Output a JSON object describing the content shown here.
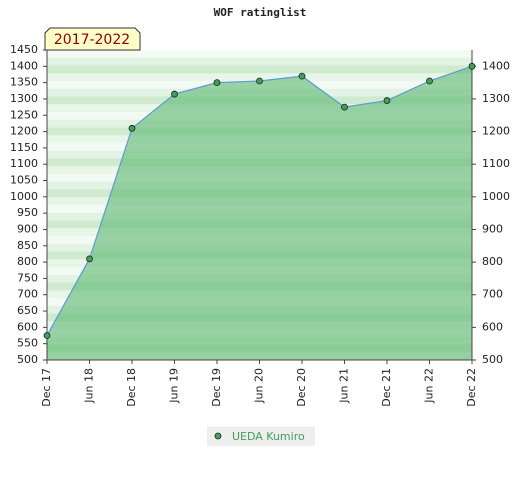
{
  "chart_data": {
    "type": "line",
    "title": "WOF ratinglist",
    "annotation": "2017-2022",
    "categories": [
      "Dec 17",
      "Jun 18",
      "Dec 18",
      "Jun 19",
      "Dec 19",
      "Jun 20",
      "Dec 20",
      "Jun 21",
      "Dec 21",
      "Jun 22",
      "Dec 22"
    ],
    "series": [
      {
        "name": "UEDA Kumiro",
        "color": "#5b9bd5",
        "marker_color": "#3fa05a",
        "fill_color": "#5cb870",
        "values": [
          575,
          810,
          1210,
          1315,
          1350,
          1355,
          1370,
          1275,
          1295,
          1355,
          1400
        ]
      }
    ],
    "ylim": [
      500,
      1450
    ],
    "yticks": [
      500,
      550,
      600,
      650,
      700,
      750,
      800,
      850,
      900,
      950,
      1000,
      1050,
      1100,
      1150,
      1200,
      1250,
      1300,
      1350,
      1400,
      1450
    ],
    "y2lim": [
      500,
      1450
    ],
    "y2ticks": [
      500,
      600,
      700,
      800,
      900,
      1000,
      1100,
      1200,
      1300,
      1400
    ],
    "legend": "bottom"
  }
}
